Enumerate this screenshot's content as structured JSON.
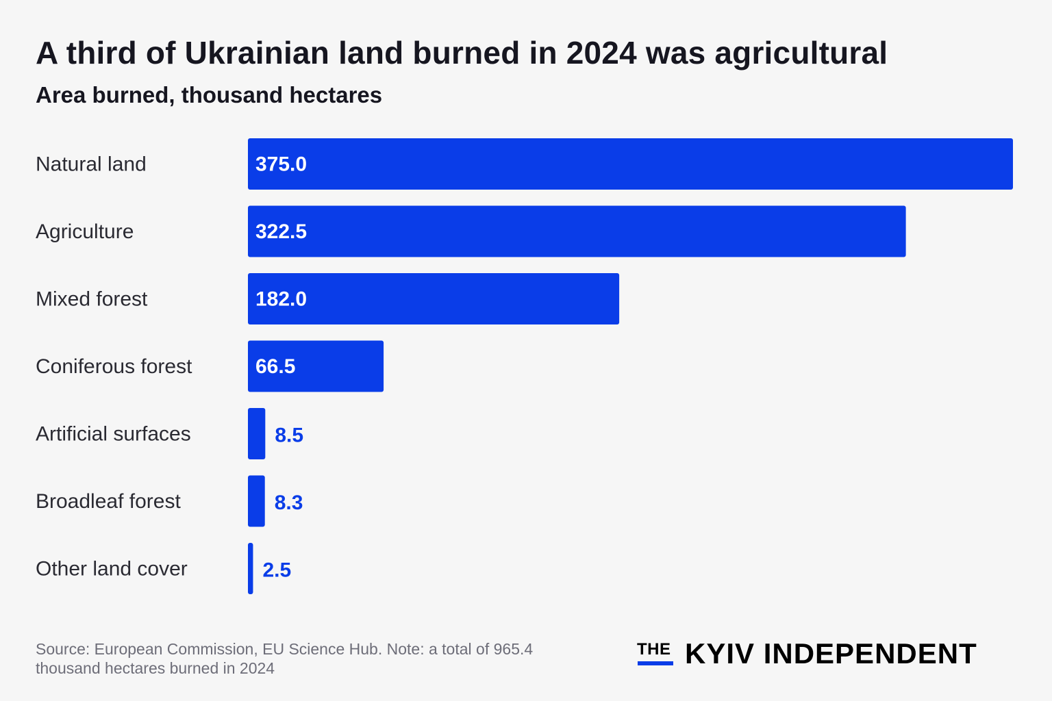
{
  "header": {
    "title": "A third of Ukrainian land burned in 2024 was agricultural",
    "subtitle": "Area burned, thousand hectares"
  },
  "chart_data": {
    "type": "bar",
    "orientation": "horizontal",
    "title": "A third of Ukrainian land burned in 2024 was agricultural",
    "subtitle": "Area burned, thousand hectares",
    "xlabel": "",
    "ylabel": "",
    "categories": [
      "Natural land",
      "Agriculture",
      "Mixed forest",
      "Coniferous forest",
      "Artificial surfaces",
      "Broadleaf forest",
      "Other land cover"
    ],
    "values": [
      375.0,
      322.5,
      182.0,
      66.5,
      8.5,
      8.3,
      2.5
    ],
    "value_labels": [
      "375.0",
      "322.5",
      "182.0",
      "66.5",
      "8.5",
      "8.3",
      "2.5"
    ],
    "xlim": [
      0,
      375
    ],
    "grid": false,
    "legend": "none",
    "bar_color": "#0a3de8"
  },
  "footer": {
    "source": "Source: European Commission, EU Science Hub. Note: a total of 965.4 thousand hectares burned in 2024",
    "logo_prefix": "THE",
    "logo_name": "KYIV INDEPENDENT"
  }
}
